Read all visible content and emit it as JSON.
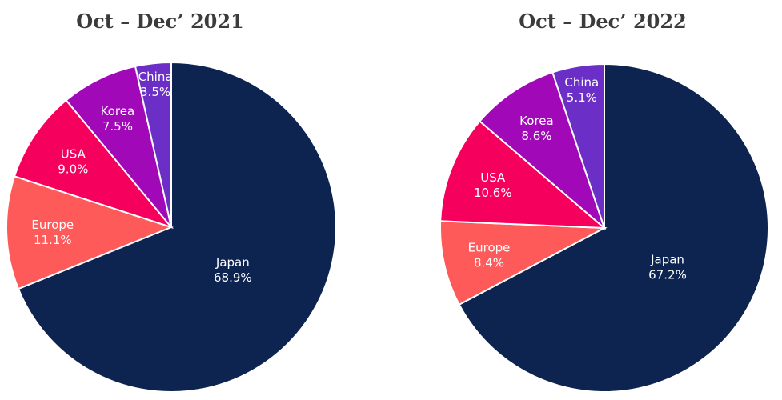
{
  "chart_data": [
    {
      "type": "pie",
      "title": "Oct – Dec’ 2021",
      "slices": [
        {
          "label": "Japan",
          "value": 68.9,
          "value_label": "68.9%",
          "color": "#0d2350"
        },
        {
          "label": "Europe",
          "value": 11.1,
          "value_label": "11.1%",
          "color": "#ff5a5a"
        },
        {
          "label": "USA",
          "value": 9.0,
          "value_label": "9.0%",
          "color": "#f5005c"
        },
        {
          "label": "Korea",
          "value": 7.5,
          "value_label": "7.5%",
          "color": "#a008b8"
        },
        {
          "label": "China",
          "value": 3.5,
          "value_label": "3.5%",
          "color": "#6b2fc7"
        }
      ]
    },
    {
      "type": "pie",
      "title": "Oct – Dec’ 2022",
      "slices": [
        {
          "label": "Japan",
          "value": 67.2,
          "value_label": "67.2%",
          "color": "#0d2350"
        },
        {
          "label": "Europe",
          "value": 8.4,
          "value_label": "8.4%",
          "color": "#ff5a5a"
        },
        {
          "label": "USA",
          "value": 10.6,
          "value_label": "10.6%",
          "color": "#f5005c"
        },
        {
          "label": "Korea",
          "value": 8.6,
          "value_label": "8.6%",
          "color": "#a008b8"
        },
        {
          "label": "China",
          "value": 5.1,
          "value_label": "5.1%",
          "color": "#6b2fc7"
        }
      ]
    }
  ]
}
